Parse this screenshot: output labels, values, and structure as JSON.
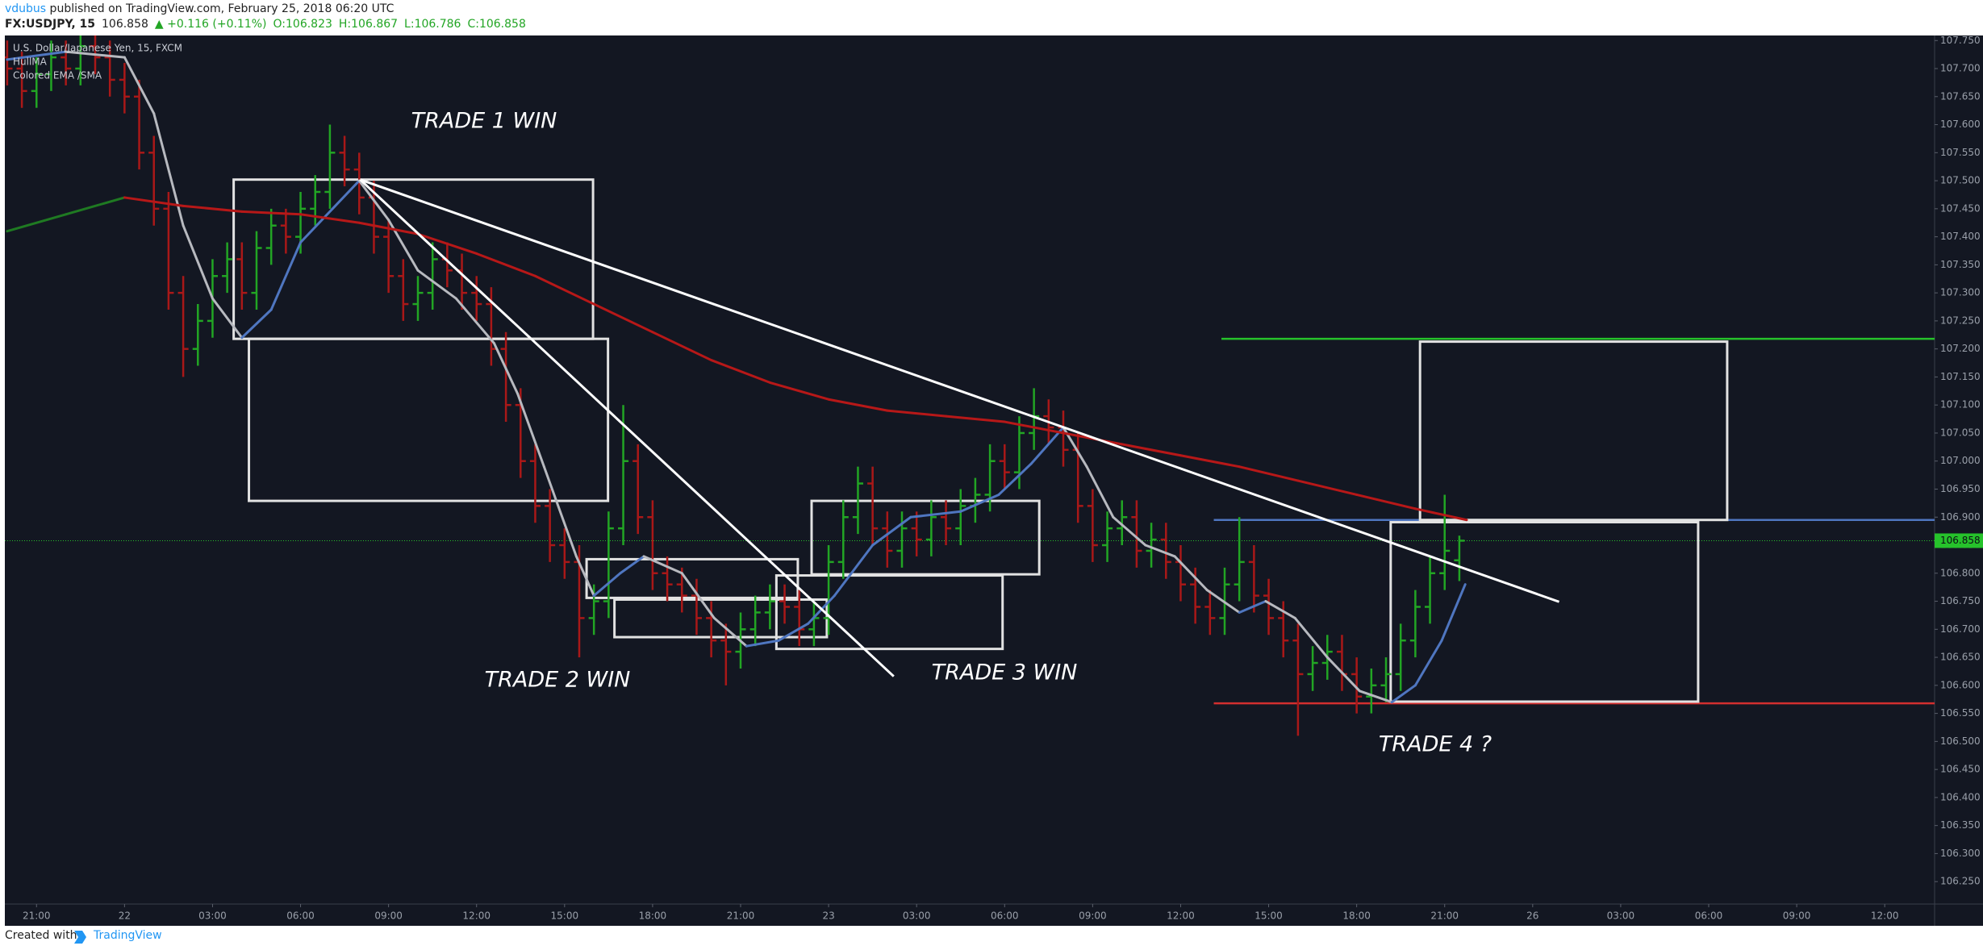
{
  "header": {
    "author": "vdubus",
    "published": " published on TradingView.com, February 25, 2018 06:20 UTC",
    "symbol": "FX:USDJPY, 15",
    "last": "106.858",
    "change": "▲ +0.116 (+0.11%)",
    "open": "O:106.823",
    "high": "H:106.867",
    "low": "L:106.786",
    "close": "C:106.858"
  },
  "footer": {
    "created": "Created with",
    "brand": "TradingView"
  },
  "chart_data": {
    "type": "ohlc",
    "title": "U.S. Dollar/Japanese Yen, 15, FXCM",
    "up_color": "#22a524",
    "down_color": "#a91818",
    "grid": false,
    "xlim": [
      -1.08,
      64.7
    ],
    "xticks": [
      {
        "value": 0,
        "label": "21:00"
      },
      {
        "value": 3,
        "label": "22"
      },
      {
        "value": 6,
        "label": "03:00"
      },
      {
        "value": 9,
        "label": "06:00"
      },
      {
        "value": 12,
        "label": "09:00"
      },
      {
        "value": 15,
        "label": "12:00"
      },
      {
        "value": 18,
        "label": "15:00"
      },
      {
        "value": 21,
        "label": "18:00"
      },
      {
        "value": 24,
        "label": "21:00"
      },
      {
        "value": 27,
        "label": "23"
      },
      {
        "value": 30,
        "label": "03:00"
      },
      {
        "value": 33,
        "label": "06:00"
      },
      {
        "value": 36,
        "label": "09:00"
      },
      {
        "value": 39,
        "label": "12:00"
      },
      {
        "value": 42,
        "label": "15:00"
      },
      {
        "value": 45,
        "label": "18:00"
      },
      {
        "value": 48,
        "label": "21:00"
      },
      {
        "value": 51,
        "label": "26"
      },
      {
        "value": 54,
        "label": "03:00"
      },
      {
        "value": 57,
        "label": "06:00"
      },
      {
        "value": 60,
        "label": "09:00"
      },
      {
        "value": 63,
        "label": "12:00"
      }
    ],
    "ylim": [
      106.21,
      107.759
    ],
    "yticks": [
      {
        "value": 106.25,
        "label": "106.250"
      },
      {
        "value": 106.3,
        "label": "106.300"
      },
      {
        "value": 106.35,
        "label": "106.350"
      },
      {
        "value": 106.4,
        "label": "106.400"
      },
      {
        "value": 106.45,
        "label": "106.450"
      },
      {
        "value": 106.5,
        "label": "106.500"
      },
      {
        "value": 106.55,
        "label": "106.550"
      },
      {
        "value": 106.6,
        "label": "106.600"
      },
      {
        "value": 106.65,
        "label": "106.650"
      },
      {
        "value": 106.7,
        "label": "106.700"
      },
      {
        "value": 106.75,
        "label": "106.750"
      },
      {
        "value": 106.8,
        "label": "106.800"
      },
      {
        "value": 106.85,
        "label": "106.850"
      },
      {
        "value": 106.9,
        "label": "106.900"
      },
      {
        "value": 106.95,
        "label": "106.950"
      },
      {
        "value": 107,
        "label": "107.000"
      },
      {
        "value": 107.05,
        "label": "107.050"
      },
      {
        "value": 107.1,
        "label": "107.100"
      },
      {
        "value": 107.15,
        "label": "107.150"
      },
      {
        "value": 107.2,
        "label": "107.200"
      },
      {
        "value": 107.25,
        "label": "107.250"
      },
      {
        "value": 107.3,
        "label": "107.300"
      },
      {
        "value": 107.35,
        "label": "107.350"
      },
      {
        "value": 107.4,
        "label": "107.400"
      },
      {
        "value": 107.45,
        "label": "107.450"
      },
      {
        "value": 107.5,
        "label": "107.500"
      },
      {
        "value": 107.55,
        "label": "107.550"
      },
      {
        "value": 107.6,
        "label": "107.600"
      },
      {
        "value": 107.65,
        "label": "107.650"
      },
      {
        "value": 107.7,
        "label": "107.700"
      },
      {
        "value": 107.75,
        "label": "107.750"
      }
    ],
    "last_price": 106.858,
    "last_color": "#26c22b",
    "x": [
      -1,
      -0.5,
      0,
      0.5,
      1,
      1.5,
      2,
      2.5,
      3,
      3.5,
      4,
      4.5,
      5,
      5.5,
      6,
      6.5,
      7,
      7.5,
      8,
      8.5,
      9,
      9.5,
      10,
      10.5,
      11,
      11.5,
      12,
      12.5,
      13,
      13.5,
      14,
      14.5,
      15,
      15.5,
      16,
      16.5,
      17,
      17.5,
      18,
      18.5,
      19,
      19.5,
      20,
      20.5,
      21,
      21.5,
      22,
      22.5,
      23,
      23.5,
      24,
      24.5,
      25,
      25.5,
      26,
      26.5,
      27,
      27.5,
      28,
      28.5,
      29,
      29.5,
      30,
      30.5,
      31,
      31.5,
      32,
      32.5,
      33,
      33.5,
      34,
      34.5,
      35,
      35.5,
      36,
      36.5,
      37,
      37.5,
      38,
      38.5,
      39,
      39.5,
      40,
      40.5,
      41,
      41.5,
      42,
      42.5,
      43,
      43.5,
      44,
      44.5,
      45,
      45.5,
      46,
      46.5,
      47,
      47.5,
      48,
      48.5
    ],
    "open": [
      107.72,
      107.7,
      107.66,
      107.69,
      107.72,
      107.7,
      107.74,
      107.72,
      107.68,
      107.65,
      107.55,
      107.45,
      107.3,
      107.2,
      107.25,
      107.33,
      107.36,
      107.3,
      107.38,
      107.42,
      107.4,
      107.45,
      107.48,
      107.55,
      107.52,
      107.47,
      107.4,
      107.33,
      107.28,
      107.3,
      107.36,
      107.34,
      107.3,
      107.28,
      107.2,
      107.1,
      107.0,
      106.92,
      106.85,
      106.82,
      106.72,
      106.75,
      106.88,
      107.0,
      106.9,
      106.8,
      106.78,
      106.76,
      106.72,
      106.68,
      106.66,
      106.7,
      106.73,
      106.75,
      106.74,
      106.7,
      106.72,
      106.82,
      106.9,
      106.96,
      106.88,
      106.84,
      106.88,
      106.86,
      106.9,
      106.88,
      106.92,
      106.94,
      107.0,
      106.98,
      107.05,
      107.08,
      107.06,
      107.02,
      106.92,
      106.85,
      106.88,
      106.9,
      106.84,
      106.86,
      106.82,
      106.78,
      106.74,
      106.72,
      106.78,
      106.82,
      106.76,
      106.72,
      106.68,
      106.62,
      106.64,
      106.66,
      106.62,
      106.58,
      106.6,
      106.62,
      106.68,
      106.74,
      106.8,
      106.823
    ],
    "high": [
      107.75,
      107.73,
      107.72,
      107.75,
      107.75,
      107.77,
      107.77,
      107.75,
      107.71,
      107.68,
      107.58,
      107.48,
      107.33,
      107.28,
      107.36,
      107.39,
      107.39,
      107.41,
      107.45,
      107.45,
      107.48,
      107.51,
      107.6,
      107.58,
      107.55,
      107.5,
      107.43,
      107.36,
      107.33,
      107.39,
      107.39,
      107.37,
      107.33,
      107.31,
      107.23,
      107.13,
      107.03,
      106.95,
      106.88,
      106.85,
      106.78,
      106.91,
      107.1,
      107.03,
      106.93,
      106.83,
      106.81,
      106.79,
      106.75,
      106.71,
      106.73,
      106.76,
      106.78,
      106.78,
      106.77,
      106.75,
      106.85,
      106.93,
      106.99,
      106.99,
      106.91,
      106.91,
      106.91,
      106.93,
      106.93,
      106.95,
      106.97,
      107.03,
      107.03,
      107.08,
      107.13,
      107.11,
      107.09,
      107.05,
      106.95,
      106.91,
      106.93,
      106.93,
      106.89,
      106.89,
      106.85,
      106.81,
      106.77,
      106.81,
      106.9,
      106.85,
      106.79,
      106.75,
      106.71,
      106.67,
      106.69,
      106.69,
      106.65,
      106.63,
      106.65,
      106.71,
      106.77,
      106.83,
      106.94,
      106.867
    ],
    "low": [
      107.67,
      107.63,
      107.63,
      107.66,
      107.67,
      107.67,
      107.69,
      107.65,
      107.62,
      107.52,
      107.42,
      107.27,
      107.15,
      107.17,
      107.22,
      107.3,
      107.27,
      107.27,
      107.35,
      107.37,
      107.37,
      107.42,
      107.45,
      107.49,
      107.44,
      107.37,
      107.3,
      107.25,
      107.25,
      107.27,
      107.31,
      107.27,
      107.25,
      107.17,
      107.07,
      106.97,
      106.89,
      106.82,
      106.79,
      106.65,
      106.69,
      106.72,
      106.85,
      106.87,
      106.77,
      106.75,
      106.73,
      106.69,
      106.65,
      106.6,
      106.63,
      106.67,
      106.7,
      106.71,
      106.67,
      106.67,
      106.69,
      106.79,
      106.87,
      106.85,
      106.81,
      106.81,
      106.83,
      106.83,
      106.85,
      106.85,
      106.89,
      106.91,
      106.95,
      106.95,
      107.02,
      107.03,
      106.99,
      106.89,
      106.82,
      106.82,
      106.85,
      106.81,
      106.81,
      106.79,
      106.75,
      106.71,
      106.69,
      106.69,
      106.75,
      106.73,
      106.69,
      106.65,
      106.51,
      106.59,
      106.61,
      106.59,
      106.55,
      106.55,
      106.57,
      106.59,
      106.65,
      106.71,
      106.77,
      106.786
    ],
    "close": [
      107.7,
      107.66,
      107.69,
      107.72,
      107.7,
      107.74,
      107.72,
      107.68,
      107.65,
      107.55,
      107.45,
      107.3,
      107.2,
      107.25,
      107.33,
      107.36,
      107.3,
      107.38,
      107.42,
      107.4,
      107.45,
      107.48,
      107.55,
      107.52,
      107.47,
      107.4,
      107.33,
      107.28,
      107.3,
      107.36,
      107.34,
      107.3,
      107.28,
      107.2,
      107.1,
      107.0,
      106.92,
      106.85,
      106.82,
      106.72,
      106.75,
      106.88,
      107.0,
      106.9,
      106.8,
      106.78,
      106.76,
      106.72,
      106.68,
      106.66,
      106.7,
      106.73,
      106.75,
      106.74,
      106.7,
      106.72,
      106.82,
      106.9,
      106.96,
      106.88,
      106.84,
      106.88,
      106.86,
      106.9,
      106.88,
      106.92,
      106.94,
      107.0,
      106.98,
      107.05,
      107.08,
      107.06,
      107.02,
      106.92,
      106.85,
      106.88,
      106.9,
      106.84,
      106.86,
      106.82,
      106.78,
      106.74,
      106.72,
      106.78,
      106.82,
      106.76,
      106.72,
      106.68,
      106.62,
      106.64,
      106.66,
      106.62,
      106.58,
      106.6,
      106.62,
      106.68,
      106.74,
      106.8,
      106.84,
      106.858
    ],
    "series": [
      {
        "name": "HullMA",
        "color": "#b7b9bf",
        "rising_color": "#4f76c0",
        "x": [
          -1,
          1,
          3,
          4,
          5,
          6,
          7,
          8,
          9,
          11,
          12,
          13,
          14.3,
          15.6,
          16.4,
          17.3,
          18.4,
          19,
          19.9,
          20.7,
          22,
          23.1,
          24.2,
          25.3,
          26.3,
          27.2,
          28.5,
          29.8,
          31.5,
          32.8,
          33.9,
          35,
          35.8,
          36.7,
          37.8,
          38.8,
          39.9,
          41,
          41.9,
          42.9,
          44,
          45.1,
          46.2,
          47,
          47.9,
          48.7
        ],
        "values": [
          107.716,
          107.73,
          107.72,
          107.62,
          107.42,
          107.29,
          107.22,
          107.27,
          107.39,
          107.5,
          107.43,
          107.34,
          107.29,
          107.21,
          107.12,
          106.99,
          106.83,
          106.76,
          106.8,
          106.83,
          106.8,
          106.72,
          106.67,
          106.68,
          106.71,
          106.76,
          106.85,
          106.9,
          106.91,
          106.94,
          106.995,
          107.06,
          106.99,
          106.9,
          106.85,
          106.83,
          106.77,
          106.73,
          106.75,
          106.72,
          106.65,
          106.59,
          106.57,
          106.6,
          106.68,
          106.78
        ]
      },
      {
        "name": "Colored EMA /SMA",
        "color": "#b71818",
        "rising_color": "#1f7a22",
        "x": [
          -1,
          1,
          3,
          5,
          7,
          9,
          11,
          13,
          15,
          17,
          19,
          21,
          23,
          25,
          27,
          29,
          31,
          33,
          35,
          37,
          39,
          41,
          43,
          45,
          47,
          48.75
        ],
        "values": [
          107.41,
          107.44,
          107.47,
          107.455,
          107.445,
          107.44,
          107.425,
          107.405,
          107.37,
          107.33,
          107.28,
          107.23,
          107.18,
          107.14,
          107.11,
          107.09,
          107.08,
          107.07,
          107.05,
          107.03,
          107.01,
          106.99,
          106.965,
          106.94,
          106.915,
          106.895
        ]
      }
    ],
    "drawings": {
      "rectangles": [
        {
          "x": [
            6.72,
            18.97
          ],
          "y": [
            107.502,
            107.218
          ]
        },
        {
          "x": [
            7.24,
            19.48
          ],
          "y": [
            107.218,
            106.929
          ]
        },
        {
          "x": [
            18.75,
            25.95
          ],
          "y": [
            106.825,
            106.756
          ]
        },
        {
          "x": [
            19.7,
            26.94
          ],
          "y": [
            106.753,
            106.686
          ]
        },
        {
          "x": [
            25.22,
            32.93
          ],
          "y": [
            106.796,
            106.665
          ]
        },
        {
          "x": [
            26.42,
            34.18
          ],
          "y": [
            106.929,
            106.798
          ]
        },
        {
          "x": [
            47.16,
            57.63
          ],
          "y": [
            107.213,
            106.895
          ]
        },
        {
          "x": [
            46.16,
            56.64
          ],
          "y": [
            106.891,
            106.571
          ]
        }
      ],
      "trend_lines": [
        {
          "x": [
            11.03,
            29.22
          ],
          "y": [
            107.502,
            106.616
          ]
        },
        {
          "x": [
            11.03,
            51.9
          ],
          "y": [
            107.502,
            106.749
          ]
        }
      ],
      "levels": [
        {
          "x": 40.39,
          "y": 107.218,
          "color": "#26c22b"
        },
        {
          "x": 40.13,
          "y": 106.568,
          "color": "#d32f2f"
        },
        {
          "x": 40.13,
          "y": 106.895,
          "color": "#4f76c0"
        }
      ]
    },
    "annotations": [
      "TRADE 1 WIN",
      "TRADE 2 WIN",
      "TRADE 3 WIN",
      "TRADE 4 ?"
    ]
  }
}
